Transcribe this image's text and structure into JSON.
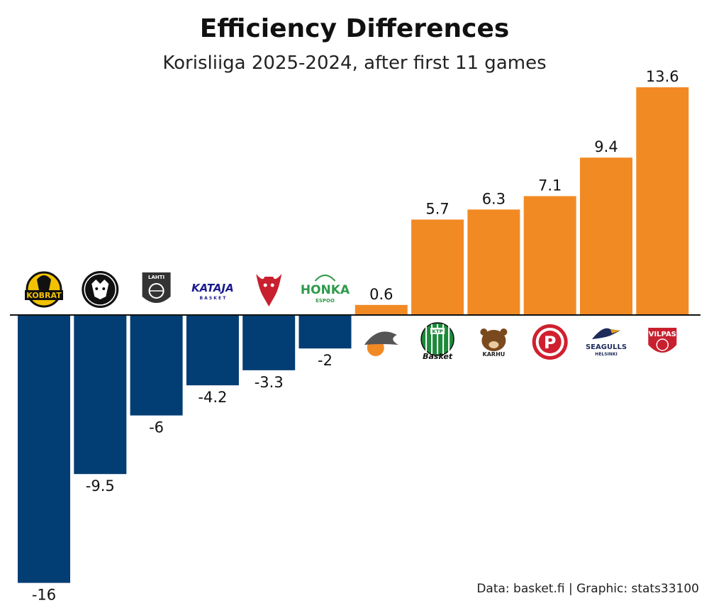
{
  "chart_data": {
    "type": "bar",
    "title": "Efficiency Differences",
    "subtitle": "Korisliiga 2025-2024, after first 11 games",
    "source": "Data: basket.fi | Graphic: stats33100",
    "xlabel": "",
    "ylabel": "",
    "ylim": [
      -16,
      13.6
    ],
    "categories": [
      "Kobrat",
      "Bears",
      "Lahti Basketball",
      "Kataja Basket",
      "Bisons",
      "Tapiolan Honka",
      "Sharks",
      "KTP Basket",
      "Kauhajoen Karhu Basket",
      "Pyrinto",
      "Seagulls Helsinki",
      "Vilpas"
    ],
    "values": [
      -16,
      -9.5,
      -6,
      -4.2,
      -3.3,
      -2,
      0.6,
      5.7,
      6.3,
      7.1,
      9.4,
      13.6
    ],
    "value_labels": [
      "-16",
      "-9.5",
      "-6",
      "-4.2",
      "-3.3",
      "-2",
      "0.6",
      "5.7",
      "6.3",
      "7.1",
      "9.4",
      "13.6"
    ],
    "colors": {
      "negative": "#023d73",
      "positive": "#f28a24",
      "axis": "#111111"
    }
  },
  "logos": [
    {
      "name": "kobrat-logo-icon",
      "text": "KOBRAT",
      "color": "#111111",
      "accent": "#f2c200"
    },
    {
      "name": "bears-logo-icon",
      "text": "",
      "color": "#111111",
      "accent": "#ffffff"
    },
    {
      "name": "lahti-logo-icon",
      "text": "LAHTI",
      "color": "#333333",
      "accent": "#ffffff"
    },
    {
      "name": "kataja-logo-icon",
      "text": "KATAJA",
      "color": "#1b1b8f",
      "accent": "#1b1b8f"
    },
    {
      "name": "bisons-logo-icon",
      "text": "",
      "color": "#c8202f",
      "accent": "#ffffff"
    },
    {
      "name": "honka-logo-icon",
      "text": "HONKA",
      "color": "#2e9a4a",
      "accent": "#2e9a4a"
    },
    {
      "name": "sharks-logo-icon",
      "text": "",
      "color": "#555555",
      "accent": "#f28a24"
    },
    {
      "name": "ktp-logo-icon",
      "text": "KTP",
      "color": "#1c8a3a",
      "accent": "#ffffff"
    },
    {
      "name": "karhu-logo-icon",
      "text": "KARHU",
      "color": "#7a4a1e",
      "accent": "#222222"
    },
    {
      "name": "pyrinto-logo-icon",
      "text": "P",
      "color": "#d0202f",
      "accent": "#ffffff"
    },
    {
      "name": "seagulls-logo-icon",
      "text": "SEAGULLS",
      "color": "#1d2a5a",
      "accent": "#e0a020"
    },
    {
      "name": "vilpas-logo-icon",
      "text": "VILPAS",
      "color": "#c8202f",
      "accent": "#ffffff"
    }
  ]
}
